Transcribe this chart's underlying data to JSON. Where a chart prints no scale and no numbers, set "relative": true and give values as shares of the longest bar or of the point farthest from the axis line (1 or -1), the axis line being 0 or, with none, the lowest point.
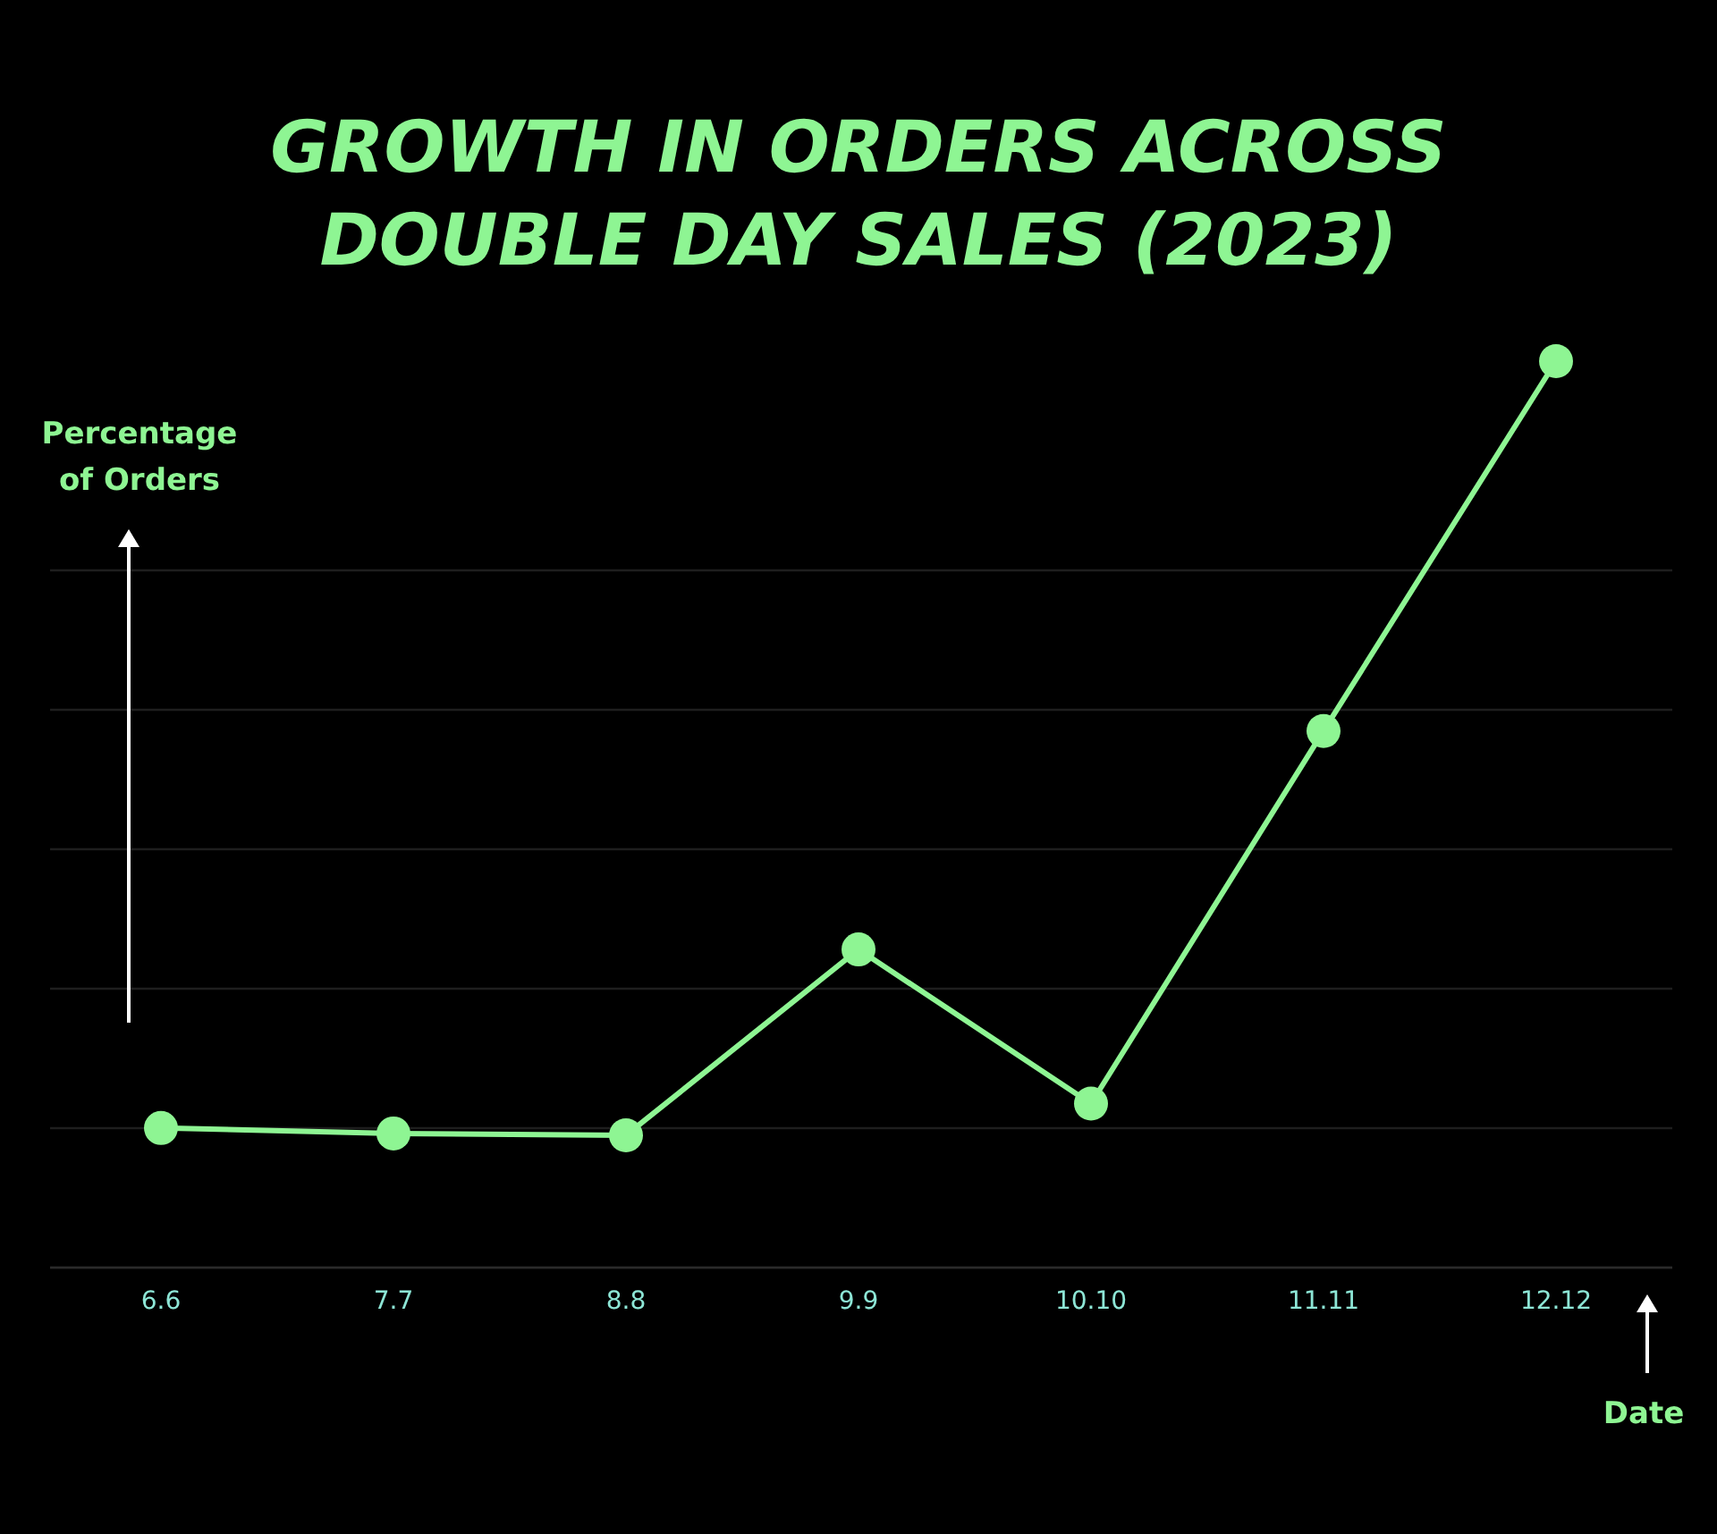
{
  "chart_data": {
    "type": "line",
    "title": "GROWTH IN ORDERS ACROSS\nDOUBLE DAY SALES (2023)",
    "ylabel": "Percentage\nof Orders",
    "xlabel": "Date",
    "relative": true,
    "grid": "y",
    "marker": "circle",
    "line_style": "solid",
    "categories": [
      "6.6",
      "7.7",
      "8.8",
      "9.9",
      "10.10",
      "11.11",
      "12.12"
    ],
    "series": [
      {
        "color": "#8ef593",
        "values": [
          0.154,
          0.148,
          0.146,
          0.351,
          0.181,
          0.592,
          1
        ]
      }
    ]
  }
}
